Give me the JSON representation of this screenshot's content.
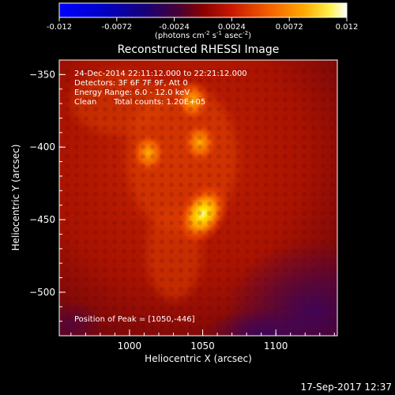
{
  "colorbar": {
    "ticks": [
      "-0.012",
      "-0.0072",
      "-0.0024",
      "0.0024",
      "0.0072",
      "0.012"
    ],
    "unit_main": "(photons cm",
    "unit_exp1": "-2",
    "unit_mid": " s",
    "unit_exp2": "-1",
    "unit_end": " asec",
    "unit_exp3": "-2",
    "unit_close": ")",
    "colormap": "red-temperature with blue negatives"
  },
  "chart_data": {
    "type": "heatmap",
    "title": "Reconstructed RHESSI Image",
    "xlabel": "Heliocentric X (arcsec)",
    "ylabel": "Heliocentric Y (arcsec)",
    "xlim": [
      952,
      1142
    ],
    "ylim": [
      -530,
      -340
    ],
    "xticks": [
      1000,
      1050,
      1100
    ],
    "yticks": [
      -350,
      -400,
      -450,
      -500
    ],
    "value_range": [
      -0.012,
      0.012
    ],
    "sources": [
      {
        "x": 1050,
        "y": -446,
        "peak": 0.012
      },
      {
        "x": 1048,
        "y": -397,
        "peak": 0.0072
      },
      {
        "x": 1013,
        "y": -404,
        "peak": 0.005
      },
      {
        "x": 1043,
        "y": -368,
        "peak": 0.0045
      }
    ],
    "peak_position": [
      1050,
      -446
    ]
  },
  "annotations": {
    "time": "24-Dec-2014 22:11:12.000 to 22:21:12.000",
    "detectors": "Detectors: 3F 6F 7F 9F, Att 0",
    "energy": "Energy Range: 6.0 - 12.0 keV",
    "clean": "Clean",
    "counts": "Total counts: 1.20E+05",
    "peak": "Position of Peak = [1050,-446]"
  },
  "timestamp": "17-Sep-2017 12:37"
}
